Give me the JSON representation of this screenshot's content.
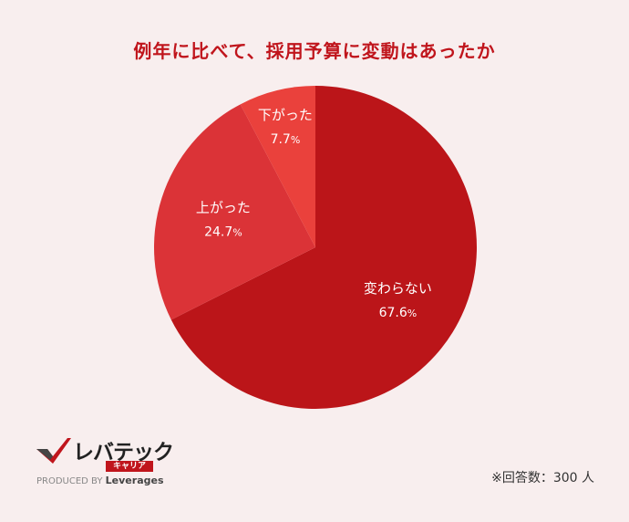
{
  "chart_data": {
    "type": "pie",
    "title": "例年に比べて、採用予算に変動はあったか",
    "slices": [
      {
        "label": "変わらない",
        "value": 67.6,
        "display": "67.6",
        "color": "#bb1519"
      },
      {
        "label": "上がった",
        "value": 24.7,
        "display": "24.7",
        "color": "#db3337"
      },
      {
        "label": "下がった",
        "value": 7.7,
        "display": "7.7",
        "color": "#ea413c"
      }
    ],
    "unit": "%",
    "start": "12 o'clock",
    "direction": "clockwise"
  },
  "footnote": "※回答数：300 人",
  "logo": {
    "name": "レバテック",
    "sub": "キャリア",
    "produced_by": "PRODUCED BY",
    "brand": "Leverages"
  }
}
